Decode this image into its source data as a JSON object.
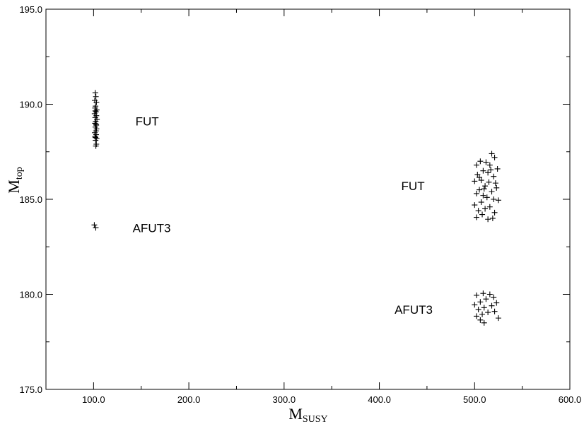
{
  "chart_data": {
    "type": "scatter",
    "title": "",
    "xlabel": {
      "main": "M",
      "sub": "SUSY"
    },
    "ylabel": {
      "main": "M",
      "sub": "top"
    },
    "xlim": [
      50,
      600
    ],
    "ylim": [
      175,
      195
    ],
    "xticks": [
      100,
      200,
      300,
      400,
      500,
      600
    ],
    "xtick_labels": [
      "100.0",
      "200.0",
      "300.0",
      "400.0",
      "500.0",
      "600.0"
    ],
    "yticks": [
      175,
      180,
      185,
      190,
      195
    ],
    "ytick_labels": [
      "175.0",
      "180.0",
      "185.0",
      "190.0",
      "195.0"
    ],
    "grid": false,
    "marker": "+",
    "series": [
      {
        "values": [
          [
            101.8,
            190.6
          ],
          [
            102.4,
            190.4
          ],
          [
            101.2,
            190.2
          ],
          [
            103.0,
            190.1
          ],
          [
            102.0,
            189.9
          ],
          [
            101.5,
            189.8
          ],
          [
            103.3,
            189.7
          ],
          [
            102.6,
            189.6
          ],
          [
            101.1,
            189.5
          ],
          [
            102.9,
            189.4
          ],
          [
            101.7,
            189.3
          ],
          [
            103.5,
            189.2
          ],
          [
            102.2,
            189.1
          ],
          [
            101.4,
            189.0
          ],
          [
            102.8,
            188.9
          ],
          [
            101.9,
            188.8
          ],
          [
            103.1,
            188.7
          ],
          [
            102.5,
            188.6
          ],
          [
            101.3,
            188.5
          ],
          [
            102.7,
            188.4
          ],
          [
            101.6,
            188.3
          ],
          [
            103.2,
            188.2
          ],
          [
            102.1,
            188.1
          ],
          [
            102.9,
            187.9
          ],
          [
            102.4,
            187.8
          ],
          [
            101.8,
            189.65
          ],
          [
            102.6,
            188.95
          ],
          [
            101.9,
            188.25
          ]
        ]
      },
      {
        "values": [
          [
            100.8,
            183.65
          ],
          [
            102.3,
            183.5
          ]
        ]
      },
      {
        "values": [
          [
            518.0,
            187.4
          ],
          [
            521.0,
            187.2
          ],
          [
            506.0,
            187.0
          ],
          [
            512.0,
            186.95
          ],
          [
            502.0,
            186.8
          ],
          [
            516.0,
            186.8
          ],
          [
            524.0,
            186.6
          ],
          [
            509.0,
            186.5
          ],
          [
            514.0,
            186.4
          ],
          [
            503.0,
            186.3
          ],
          [
            520.0,
            186.2
          ],
          [
            507.0,
            186.0
          ],
          [
            500.0,
            185.95
          ],
          [
            515.0,
            185.9
          ],
          [
            511.0,
            185.7
          ],
          [
            523.0,
            185.6
          ],
          [
            505.0,
            185.5
          ],
          [
            518.0,
            185.4
          ],
          [
            502.0,
            185.3
          ],
          [
            509.0,
            185.2
          ],
          [
            513.0,
            185.1
          ],
          [
            520.0,
            185.0
          ],
          [
            525.0,
            184.95
          ],
          [
            507.0,
            184.85
          ],
          [
            500.0,
            184.7
          ],
          [
            516.0,
            184.6
          ],
          [
            511.0,
            184.5
          ],
          [
            504.0,
            184.4
          ],
          [
            521.0,
            184.3
          ],
          [
            508.0,
            184.2
          ],
          [
            502.0,
            184.05
          ],
          [
            519.0,
            184.0
          ],
          [
            514.0,
            183.95
          ],
          [
            510.0,
            185.55
          ],
          [
            517.0,
            186.55
          ],
          [
            505.0,
            186.15
          ],
          [
            522.0,
            185.85
          ]
        ]
      },
      {
        "values": [
          [
            509.0,
            180.05
          ],
          [
            516.0,
            180.0
          ],
          [
            502.0,
            179.95
          ],
          [
            520.0,
            179.85
          ],
          [
            512.0,
            179.75
          ],
          [
            506.0,
            179.6
          ],
          [
            523.0,
            179.55
          ],
          [
            500.0,
            179.45
          ],
          [
            518.0,
            179.4
          ],
          [
            510.0,
            179.3
          ],
          [
            504.0,
            179.2
          ],
          [
            521.0,
            179.1
          ],
          [
            514.0,
            179.05
          ],
          [
            508.0,
            178.95
          ],
          [
            502.0,
            178.85
          ],
          [
            525.0,
            178.75
          ],
          [
            506.0,
            178.65
          ],
          [
            510.0,
            178.5
          ]
        ]
      }
    ],
    "annotations": [
      {
        "text": "FUT",
        "x": 144,
        "y": 189.1
      },
      {
        "text": "AFUT3",
        "x": 141,
        "y": 183.5
      },
      {
        "text": "FUT",
        "x": 423,
        "y": 185.7
      },
      {
        "text": "AFUT3",
        "x": 416,
        "y": 179.2
      }
    ]
  }
}
